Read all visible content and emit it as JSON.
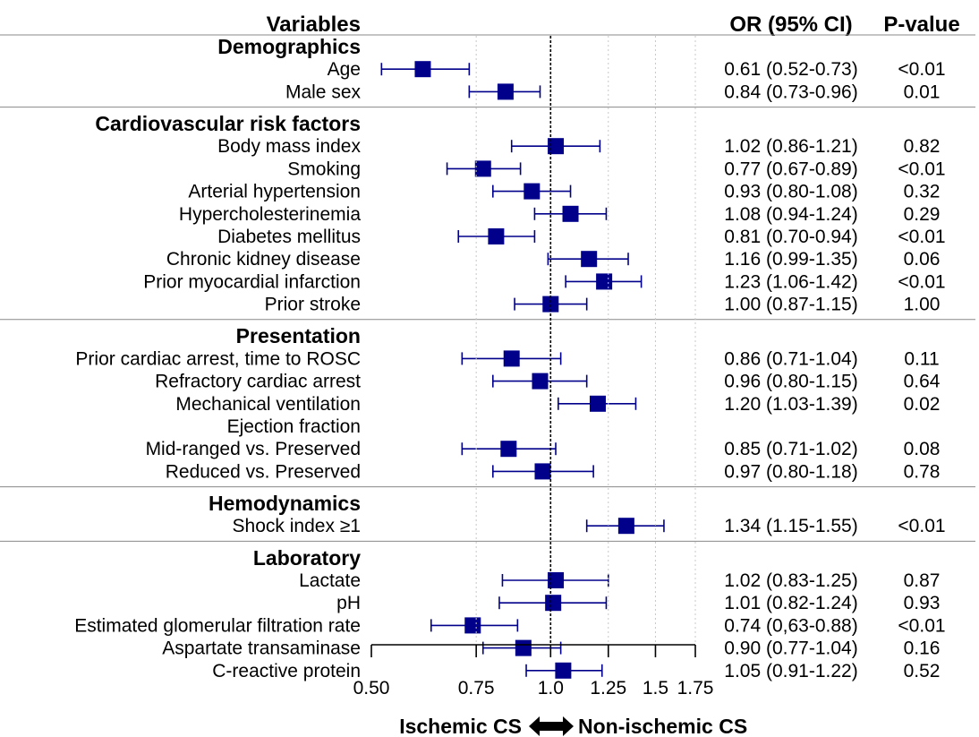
{
  "headers": {
    "variables": "Variables",
    "or": "OR (95% CI)",
    "p": "P-value"
  },
  "footer": {
    "left": "Ischemic CS",
    "right": "Non-ischemic CS"
  },
  "colors": {
    "marker": "#00008b",
    "ci": "#00008b",
    "refline": "#000000"
  },
  "chart_data": {
    "type": "forest",
    "xscale": "log",
    "xlim": [
      0.5,
      1.75
    ],
    "reference_line": 1.0,
    "x_ticks": [
      "0.50",
      "0.75",
      "1.0",
      "1.25",
      "1.5",
      "1.75"
    ],
    "sections": [
      {
        "title": "Demographics",
        "rows": [
          {
            "label": "Age",
            "or": 0.61,
            "lo": 0.52,
            "hi": 0.73,
            "text": "0.61 (0.52-0.73)",
            "p": "<0.01"
          },
          {
            "label": "Male sex",
            "or": 0.84,
            "lo": 0.73,
            "hi": 0.96,
            "text": "0.84 (0.73-0.96)",
            "p": "0.01"
          }
        ]
      },
      {
        "title": "Cardiovascular risk factors",
        "rows": [
          {
            "label": "Body mass index",
            "or": 1.02,
            "lo": 0.86,
            "hi": 1.21,
            "text": "1.02 (0.86-1.21)",
            "p": "0.82"
          },
          {
            "label": "Smoking",
            "or": 0.77,
            "lo": 0.67,
            "hi": 0.89,
            "text": "0.77 (0.67-0.89)",
            "p": "<0.01"
          },
          {
            "label": "Arterial hypertension",
            "or": 0.93,
            "lo": 0.8,
            "hi": 1.08,
            "text": "0.93 (0.80-1.08)",
            "p": "0.32"
          },
          {
            "label": "Hypercholesterinemia",
            "or": 1.08,
            "lo": 0.94,
            "hi": 1.24,
            "text": "1.08 (0.94-1.24)",
            "p": "0.29"
          },
          {
            "label": "Diabetes mellitus",
            "or": 0.81,
            "lo": 0.7,
            "hi": 0.94,
            "text": "0.81 (0.70-0.94)",
            "p": "<0.01"
          },
          {
            "label": "Chronic kidney disease",
            "or": 1.16,
            "lo": 0.99,
            "hi": 1.35,
            "text": "1.16 (0.99-1.35)",
            "p": "0.06"
          },
          {
            "label": "Prior myocardial infarction",
            "or": 1.23,
            "lo": 1.06,
            "hi": 1.42,
            "text": "1.23 (1.06-1.42)",
            "p": "<0.01"
          },
          {
            "label": "Prior stroke",
            "or": 1.0,
            "lo": 0.87,
            "hi": 1.15,
            "text": "1.00 (0.87-1.15)",
            "p": "1.00"
          }
        ]
      },
      {
        "title": "Presentation",
        "rows": [
          {
            "label": "Prior cardiac arrest, time to ROSC",
            "or": 0.86,
            "lo": 0.71,
            "hi": 1.04,
            "text": "0.86 (0.71-1.04)",
            "p": "0.11"
          },
          {
            "label": "Refractory cardiac arrest",
            "or": 0.96,
            "lo": 0.8,
            "hi": 1.15,
            "text": "0.96 (0.80-1.15)",
            "p": "0.64"
          },
          {
            "label": "Mechanical ventilation",
            "or": 1.2,
            "lo": 1.03,
            "hi": 1.39,
            "text": "1.20 (1.03-1.39)",
            "p": "0.02"
          },
          {
            "label": "Ejection fraction",
            "or": null,
            "lo": null,
            "hi": null,
            "text": "",
            "p": ""
          },
          {
            "label": "Mid-ranged vs. Preserved",
            "or": 0.85,
            "lo": 0.71,
            "hi": 1.02,
            "text": "0.85 (0.71-1.02)",
            "p": "0.08"
          },
          {
            "label": "Reduced vs. Preserved",
            "or": 0.97,
            "lo": 0.8,
            "hi": 1.18,
            "text": "0.97 (0.80-1.18)",
            "p": "0.78"
          }
        ]
      },
      {
        "title": "Hemodynamics",
        "rows": [
          {
            "label": "Shock index ≥1",
            "or": 1.34,
            "lo": 1.15,
            "hi": 1.55,
            "text": "1.34 (1.15-1.55)",
            "p": "<0.01"
          }
        ]
      },
      {
        "title": "Laboratory",
        "rows": [
          {
            "label": "Lactate",
            "or": 1.02,
            "lo": 0.83,
            "hi": 1.25,
            "text": "1.02 (0.83-1.25)",
            "p": "0.87"
          },
          {
            "label": "pH",
            "or": 1.01,
            "lo": 0.82,
            "hi": 1.24,
            "text": "1.01 (0.82-1.24)",
            "p": "0.93"
          },
          {
            "label": "Estimated glomerular filtration rate",
            "or": 0.74,
            "lo": 0.63,
            "hi": 0.88,
            "text": "0.74 (0,63-0.88)",
            "p": "<0.01"
          },
          {
            "label": "Aspartate transaminase",
            "or": 0.9,
            "lo": 0.77,
            "hi": 1.04,
            "text": "0.90 (0.77-1.04)",
            "p": "0.16"
          },
          {
            "label": "C-reactive protein",
            "or": 1.05,
            "lo": 0.91,
            "hi": 1.22,
            "text": "1.05 (0.91-1.22)",
            "p": "0.52"
          }
        ]
      }
    ]
  }
}
